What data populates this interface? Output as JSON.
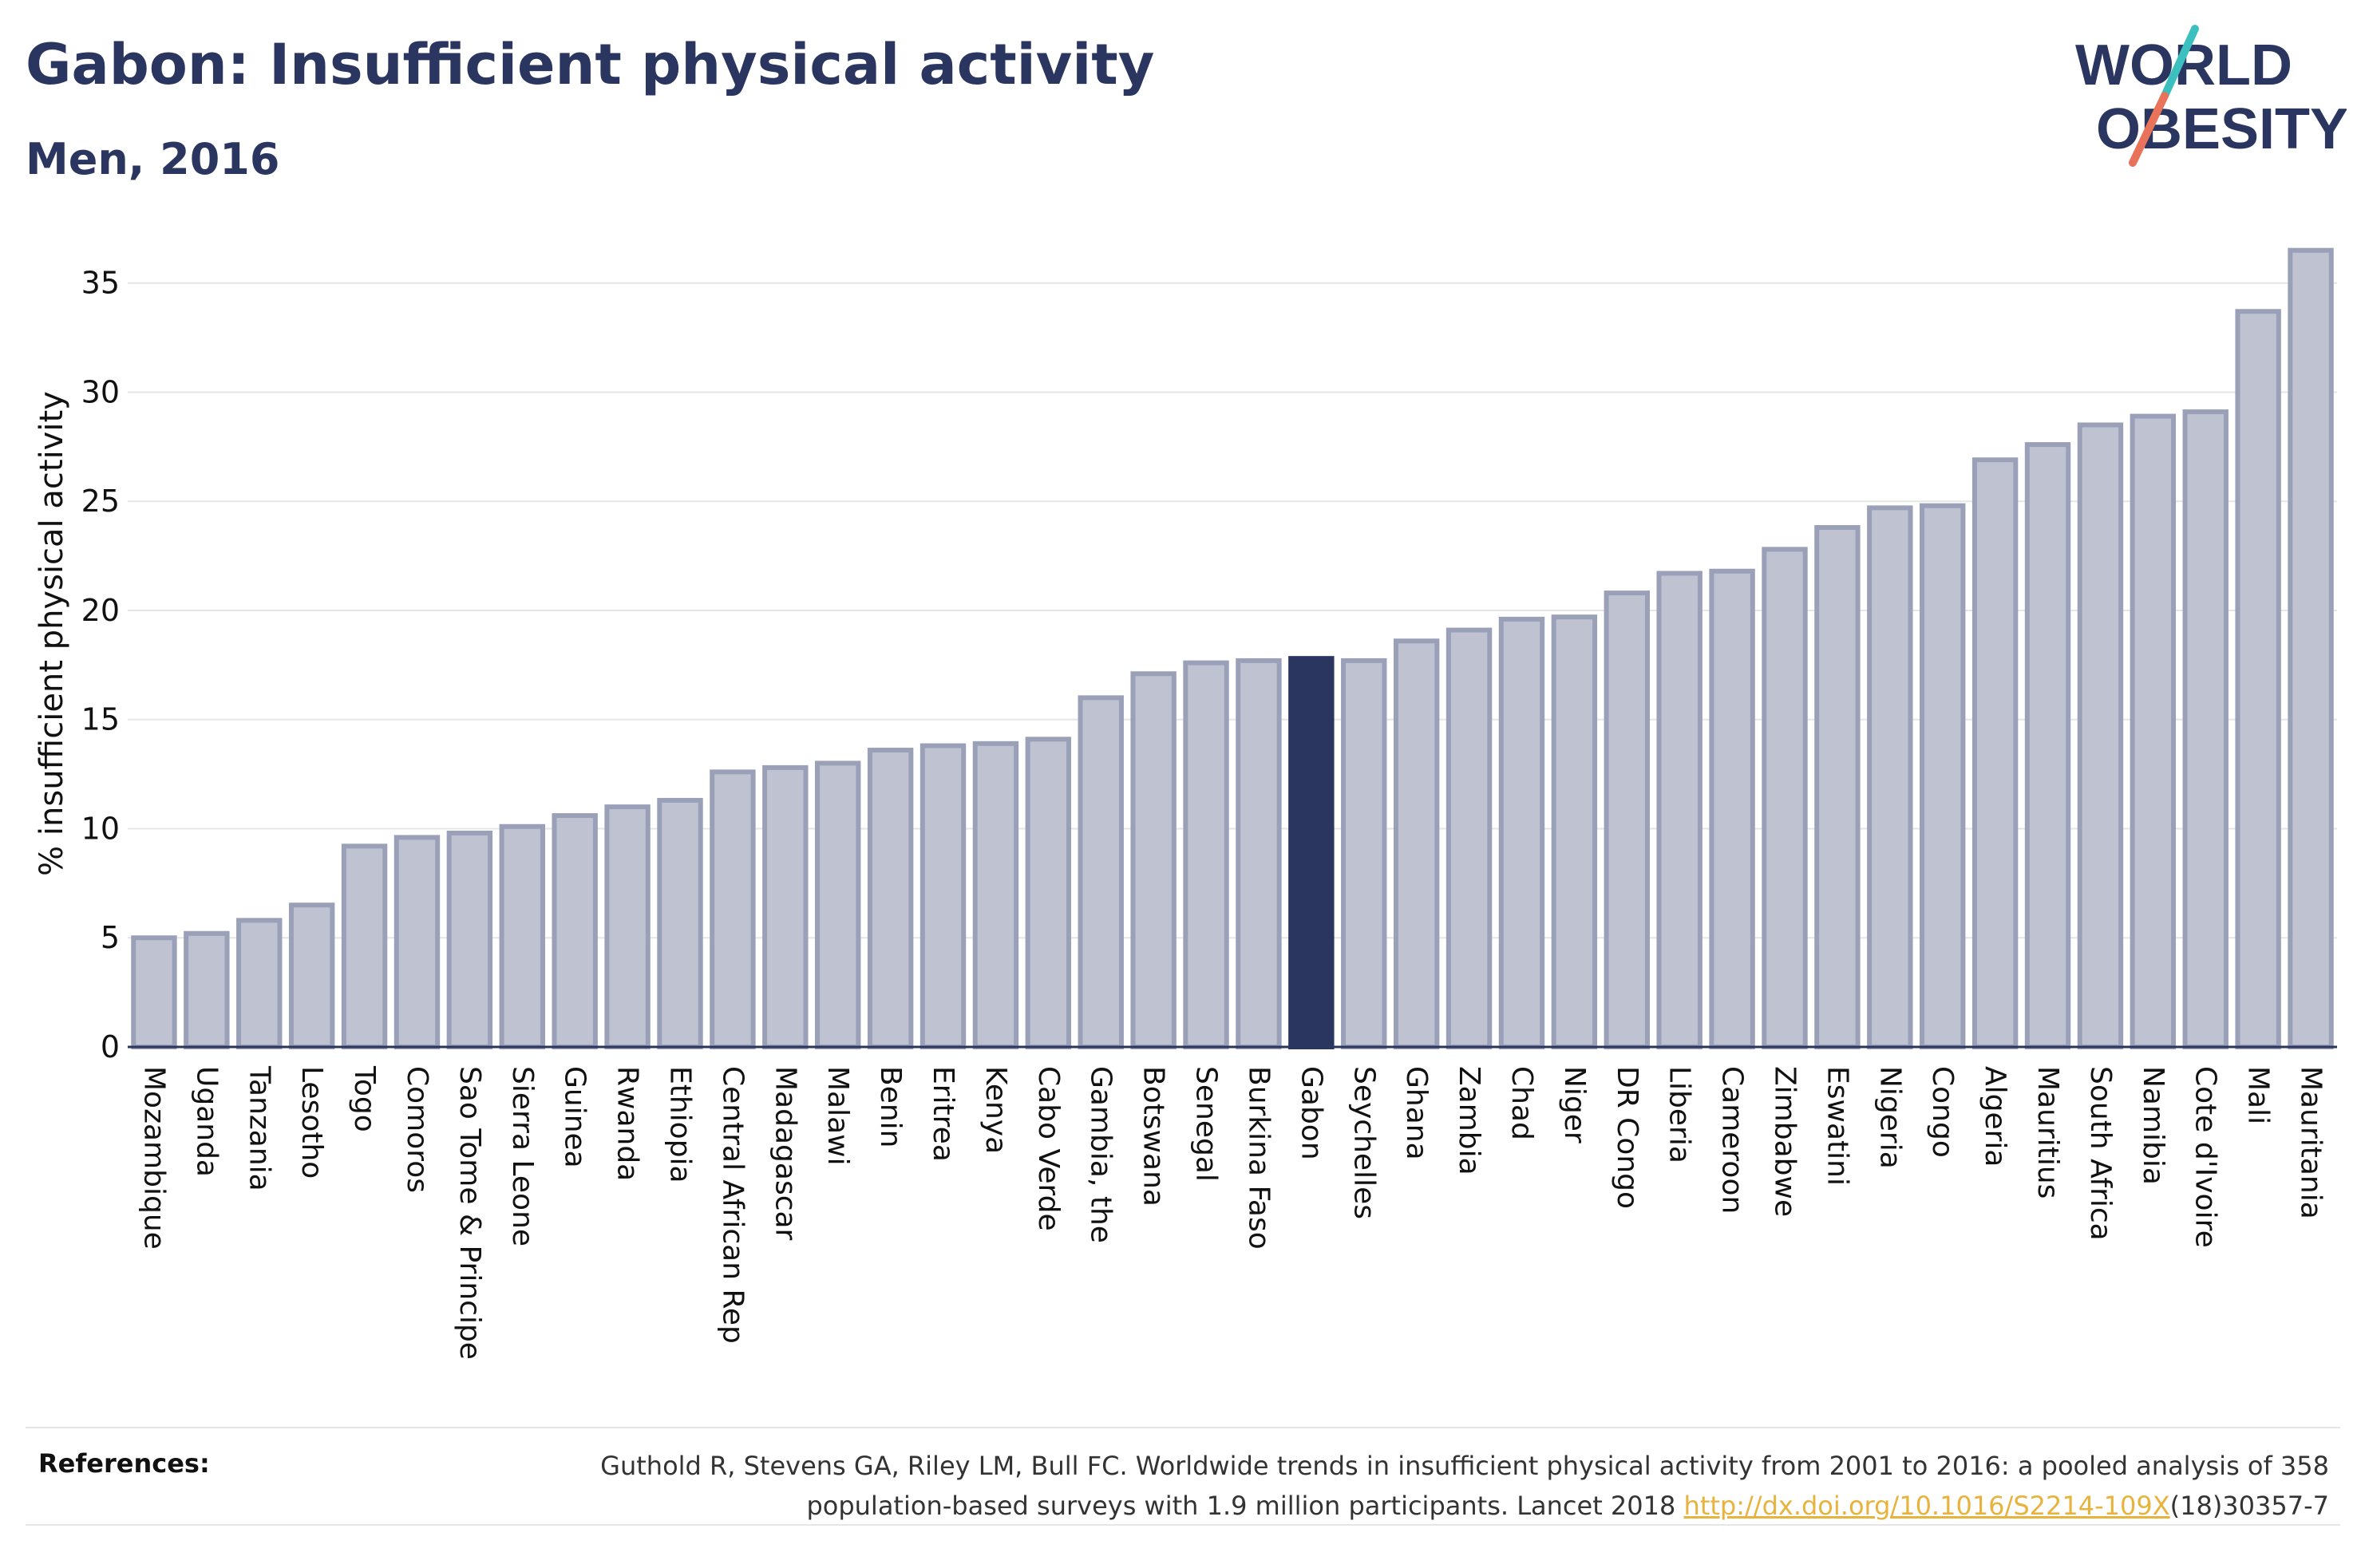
{
  "header": {
    "title": "Gabon: Insufficient physical activity",
    "subtitle": "Men, 2016"
  },
  "logo": {
    "line1": "WORLD",
    "line2": "OBESITY"
  },
  "colors": {
    "bar_fill": "#bfc3d1",
    "bar_stroke": "#9aa0b8",
    "highlight_fill": "#2a3660",
    "title": "#2a3660",
    "logo_teal": "#3bbfbf",
    "logo_coral": "#e8735a",
    "link": "#e8b33d"
  },
  "references": {
    "label": "References:",
    "text_line1": "Guthold R, Stevens GA, Riley LM, Bull FC. Worldwide trends in insufficient physical activity from 2001 to 2016: a pooled analysis of 358",
    "text_line2_prefix": "population-based surveys with 1.9 million participants. Lancet 2018 ",
    "link_text": "http://dx.doi.org/10.1016/S2214-109X",
    "text_line2_suffix": "(18)30357-7"
  },
  "chart_data": {
    "type": "bar",
    "title": "Gabon: Insufficient physical activity",
    "subtitle": "Men, 2016",
    "xlabel": "",
    "ylabel": "% insufficient physical activity",
    "ylim": [
      0,
      37
    ],
    "yticks": [
      0,
      5,
      10,
      15,
      20,
      25,
      30,
      35
    ],
    "grid": true,
    "highlight": "Gabon",
    "categories": [
      "Mozambique",
      "Uganda",
      "Tanzania",
      "Lesotho",
      "Togo",
      "Comoros",
      "Sao Tome & Principe",
      "Sierra Leone",
      "Guinea",
      "Rwanda",
      "Ethiopia",
      "Central African Rep",
      "Madagascar",
      "Malawi",
      "Benin",
      "Eritrea",
      "Kenya",
      "Cabo Verde",
      "Gambia, the",
      "Botswana",
      "Senegal",
      "Burkina Faso",
      "Gabon",
      "Seychelles",
      "Ghana",
      "Zambia",
      "Chad",
      "Niger",
      "DR Congo",
      "Liberia",
      "Cameroon",
      "Zimbabwe",
      "Eswatini",
      "Nigeria",
      "Congo",
      "Algeria",
      "Mauritius",
      "South Africa",
      "Namibia",
      "Cote d'Ivoire",
      "Mali",
      "Mauritania"
    ],
    "values": [
      5.0,
      5.2,
      5.8,
      6.5,
      9.2,
      9.6,
      9.8,
      10.1,
      10.6,
      11.0,
      11.3,
      12.6,
      12.8,
      13.0,
      13.6,
      13.8,
      13.9,
      14.1,
      16.0,
      17.1,
      17.6,
      17.7,
      17.8,
      17.7,
      18.6,
      19.1,
      19.6,
      19.7,
      20.8,
      21.7,
      21.8,
      22.8,
      23.8,
      24.7,
      24.8,
      26.9,
      27.6,
      28.5,
      28.9,
      29.1,
      33.7,
      36.5
    ]
  }
}
